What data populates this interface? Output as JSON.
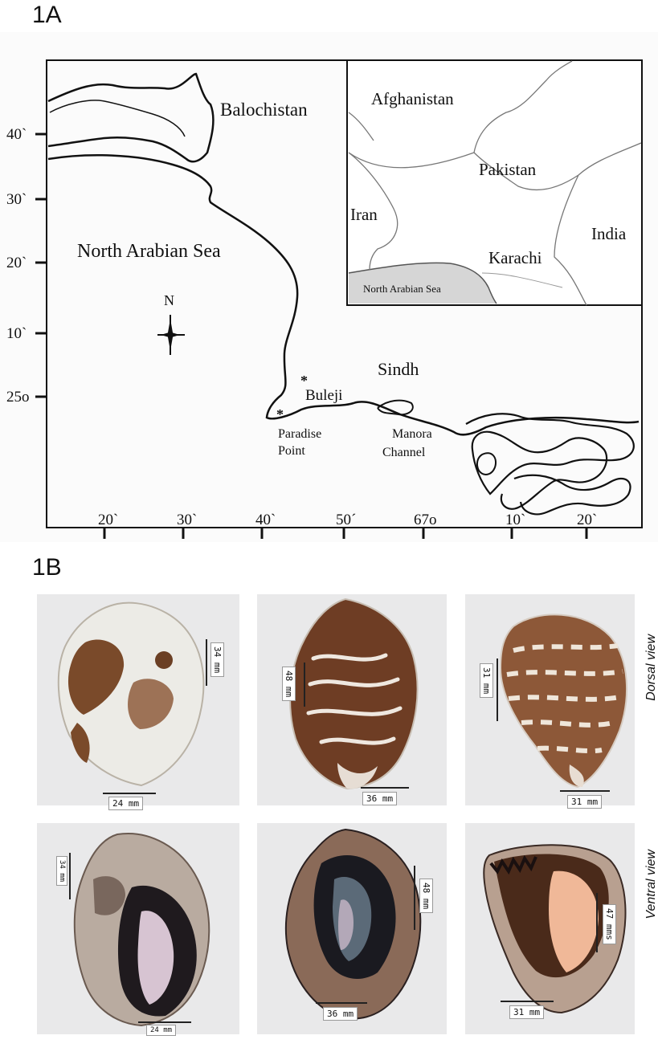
{
  "panels": {
    "a_label": "1A",
    "b_label": "1B"
  },
  "map": {
    "regions": {
      "balochistan": "Balochistan",
      "sea": "North Arabian Sea",
      "sindh": "Sindh",
      "north": "N"
    },
    "sites": {
      "buleji": "Buleji",
      "paradise_1": "Paradise",
      "paradise_2": "Point",
      "manora_1": "Manora",
      "manora_2": "Channel"
    },
    "inset": {
      "afghanistan": "Afghanistan",
      "pakistan": "Pakistan",
      "iran": "Iran",
      "india": "India",
      "karachi": "Karachi",
      "sea": "North Arabian Sea"
    },
    "lat_ticks": [
      "40`",
      "30`",
      "20`",
      "10`",
      "25o"
    ],
    "lon_ticks": [
      "20`",
      "30`",
      "40`",
      "50´",
      "67o",
      "10`",
      "20`"
    ]
  },
  "photos": {
    "dorsal_view_label": "Dorsal view",
    "ventral_view_label": "Ventral view",
    "dorsal": [
      {
        "width": "24 mm",
        "height": "34 mm"
      },
      {
        "width": "36 mm",
        "height": "48 mm"
      },
      {
        "width": "31 mm",
        "height": "31 mm"
      }
    ],
    "ventral": [
      {
        "width": "24 mm",
        "height": "34 mm"
      },
      {
        "width": "36 mm",
        "height": "48 mm"
      },
      {
        "width": "31 mm",
        "height": "47 mms"
      }
    ]
  }
}
